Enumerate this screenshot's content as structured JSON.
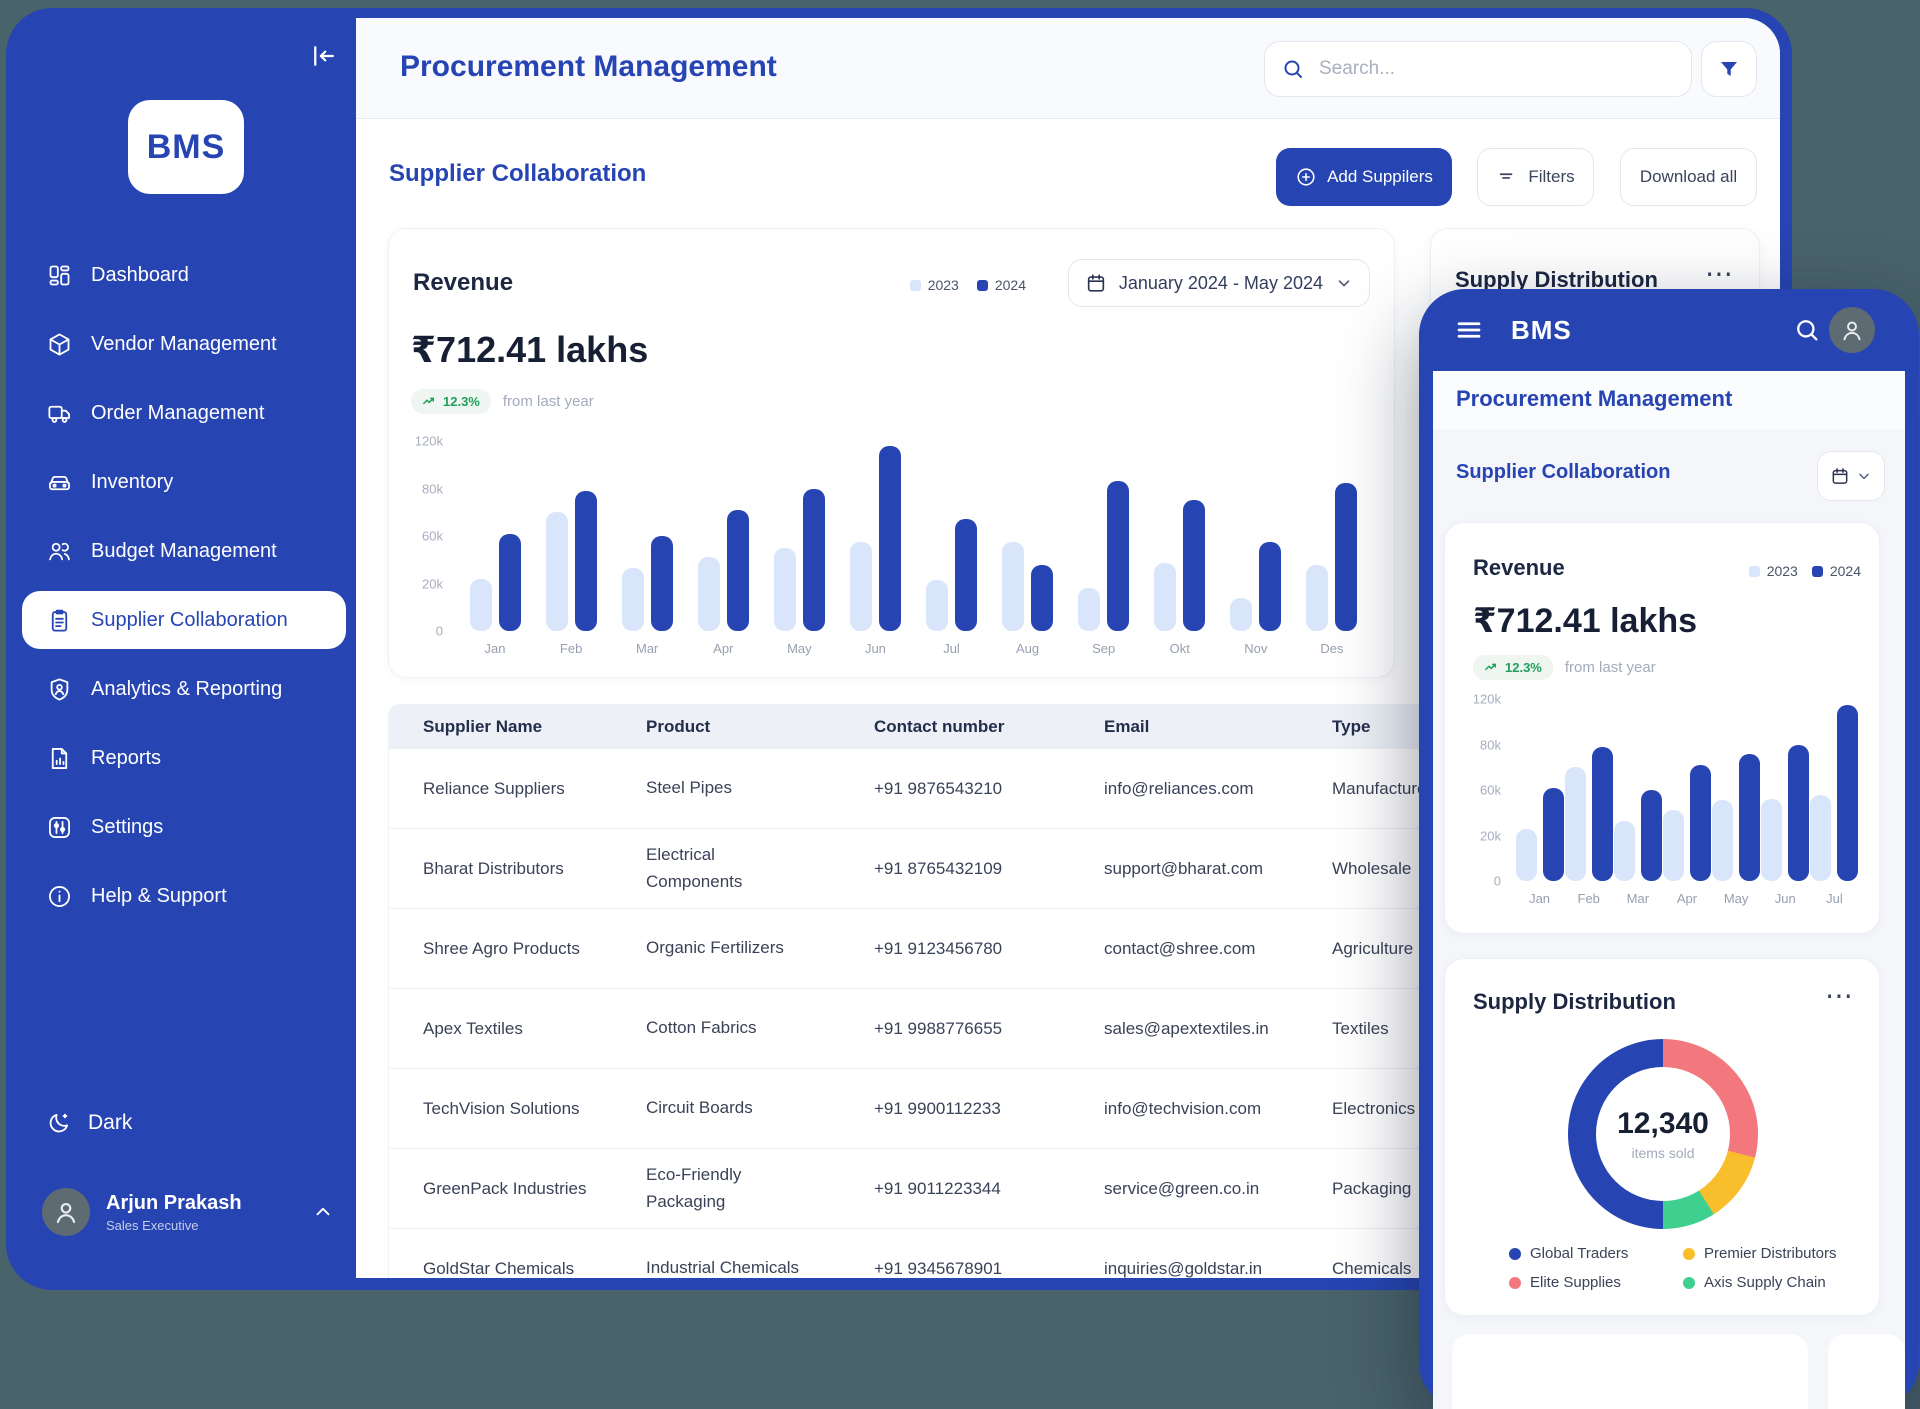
{
  "colors": {
    "accent": "#2645B2",
    "light_bar": "#D9E5FA",
    "slate_bg": "#49636B",
    "green": "#1FA05C",
    "salmon": "#F3787E",
    "yellow": "#F9BE2B",
    "teal_green": "#3FD08F",
    "navy": "#161F33"
  },
  "sidebar": {
    "logo": "BMS",
    "items": [
      {
        "label": "Dashboard",
        "icon": "dashboard",
        "active": false
      },
      {
        "label": "Vendor Management",
        "icon": "vendor",
        "active": false
      },
      {
        "label": "Order Management",
        "icon": "order",
        "active": false
      },
      {
        "label": "Inventory",
        "icon": "inventory",
        "active": false
      },
      {
        "label": "Budget Management",
        "icon": "budget",
        "active": false
      },
      {
        "label": "Supplier Collaboration",
        "icon": "supplier",
        "active": true
      },
      {
        "label": "Analytics & Reporting",
        "icon": "analytics",
        "active": false
      },
      {
        "label": "Reports",
        "icon": "reports",
        "active": false
      },
      {
        "label": "Settings",
        "icon": "settings",
        "active": false
      },
      {
        "label": "Help & Support",
        "icon": "help",
        "active": false
      }
    ],
    "dark_label": "Dark",
    "user": {
      "name": "Arjun Prakash",
      "role": "Sales Executive"
    }
  },
  "header": {
    "title": "Procurement Management",
    "search_placeholder": "Search..."
  },
  "toolbar": {
    "heading": "Supplier Collaboration",
    "add_button": "Add Suppilers",
    "filters_button": "Filters",
    "download_button": "Download all"
  },
  "revenue_card": {
    "title": "Revenue",
    "period": "January 2024 - May 2024",
    "amount": "₹712.41 lakhs",
    "delta": "12.3%",
    "delta_note": "from last year"
  },
  "supply_card": {
    "title": "Supply Distribution",
    "menu": "⋯"
  },
  "table": {
    "columns": [
      "Supplier Name",
      "Product",
      "Contact number",
      "Email",
      "Type"
    ],
    "rows": [
      {
        "supplier": "Reliance Suppliers",
        "product": "Steel Pipes",
        "contact": "+91 9876543210",
        "email": "info@reliances.com",
        "type": "Manufacturer"
      },
      {
        "supplier": "Bharat Distributors",
        "product": "Electrical Components",
        "contact": "+91 8765432109",
        "email": "support@bharat.com",
        "type": "Wholesale"
      },
      {
        "supplier": "Shree Agro Products",
        "product": "Organic Fertilizers",
        "contact": "+91 9123456780",
        "email": "contact@shree.com",
        "type": "Agriculture"
      },
      {
        "supplier": "Apex Textiles",
        "product": "Cotton Fabrics",
        "contact": "+91 9988776655",
        "email": "sales@apextextiles.in",
        "type": "Textiles"
      },
      {
        "supplier": "TechVision Solutions",
        "product": "Circuit Boards",
        "contact": "+91 9900112233",
        "email": "info@techvision.com",
        "type": "Electronics"
      },
      {
        "supplier": "GreenPack Industries",
        "product": "Eco-Friendly Packaging",
        "contact": "+91 9011223344",
        "email": "service@green.co.in",
        "type": "Packaging"
      },
      {
        "supplier": "GoldStar Chemicals",
        "product": "Industrial Chemicals",
        "contact": "+91 9345678901",
        "email": "inquiries@goldstar.in",
        "type": "Chemicals"
      }
    ]
  },
  "mobile": {
    "logo": "BMS",
    "page_title": "Procurement Management",
    "section_title": "Supplier Collaboration",
    "revenue": {
      "title": "Revenue",
      "amount": "₹712.41 lakhs",
      "delta": "12.3%",
      "delta_note": "from last year"
    },
    "supply": {
      "title": "Supply Distribution",
      "menu": "⋯"
    }
  },
  "chart_data": [
    {
      "id": "revenue_desktop",
      "type": "bar",
      "title": "Revenue",
      "subtitle": "₹712.41 lakhs, +12.3% from last year",
      "categories": [
        "Jan",
        "Feb",
        "Mar",
        "Apr",
        "May",
        "Jun",
        "Jul",
        "Aug",
        "Sep",
        "Okt",
        "Nov",
        "Des"
      ],
      "series": [
        {
          "name": "2023",
          "color": "#D9E5FA",
          "values": [
            24,
            70,
            33,
            42,
            50,
            55,
            23,
            55,
            18,
            37,
            14,
            36
          ]
        },
        {
          "name": "2024",
          "color": "#2645B2",
          "values": [
            61,
            79,
            60,
            71,
            80,
            116,
            67,
            36,
            86,
            75,
            55,
            85
          ]
        }
      ],
      "unit": "thousand (k)",
      "y_axis": {
        "tick_labels": [
          "0",
          "20k",
          "60k",
          "80k",
          "120k"
        ],
        "tick_pcts": [
          0,
          25,
          50,
          75,
          100
        ],
        "scale_values": [
          0,
          20,
          60,
          80,
          120
        ]
      },
      "legend_position": "top-right",
      "grid": false
    },
    {
      "id": "revenue_mobile",
      "type": "bar",
      "title": "Revenue (mobile)",
      "categories": [
        "Jan",
        "Feb",
        "Mar",
        "Apr",
        "May",
        "Jun",
        "Jul"
      ],
      "series": [
        {
          "name": "2023",
          "color": "#D9E5FA",
          "values": [
            26,
            70,
            33,
            42,
            51,
            52,
            56
          ]
        },
        {
          "name": "2024",
          "color": "#2645B2",
          "values": [
            61,
            79,
            60,
            71,
            76,
            80,
            115
          ]
        }
      ],
      "unit": "thousand (k)",
      "y_axis": {
        "tick_labels": [
          "0",
          "20k",
          "60k",
          "80k",
          "120k"
        ],
        "tick_pcts": [
          0,
          25,
          50,
          75,
          100
        ],
        "scale_values": [
          0,
          20,
          60,
          80,
          120
        ]
      },
      "legend_position": "top-right",
      "grid": false
    },
    {
      "id": "supply_distribution",
      "type": "pie",
      "title": "Supply Distribution",
      "center_value": "12,340",
      "center_label": "items sold",
      "segments": [
        {
          "label": "Elite Supplies",
          "value_pct": 29,
          "color": "#F3787E"
        },
        {
          "label": "Premier Distributors",
          "value_pct": 12,
          "color": "#F9BE2B"
        },
        {
          "label": "Axis Supply Chain",
          "value_pct": 9,
          "color": "#3FD08F"
        },
        {
          "label": "Global Traders",
          "value_pct": 50,
          "color": "#2645B2"
        }
      ],
      "legend_order": [
        "Global Traders",
        "Premier Distributors",
        "Elite Supplies",
        "Axis Supply Chain"
      ],
      "legend_position": "bottom"
    }
  ]
}
